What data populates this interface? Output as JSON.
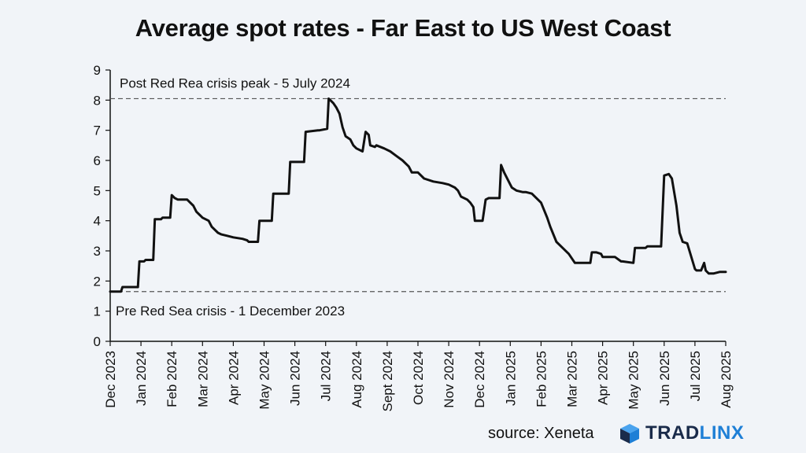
{
  "title": "Average spot rates - Far East to US West Coast",
  "source": "source: Xeneta",
  "brand": {
    "part1": "TRAD",
    "part2": "LINX",
    "icon": "cube-logo-icon"
  },
  "colors": {
    "background": "#f1f4f8",
    "line": "#111111",
    "reference": "#555555",
    "brand_dark": "#1a2b4a",
    "brand_blue": "#1e7fd6"
  },
  "chart_data": {
    "type": "line",
    "title": "Average spot rates - Far East to US West Coast",
    "xlabel": "",
    "ylabel": "",
    "ylim": [
      0,
      9
    ],
    "yticks": [
      0,
      1,
      2,
      3,
      4,
      5,
      6,
      7,
      8,
      9
    ],
    "xticks": [
      "Dec 2023",
      "Jan 2024",
      "Feb 2024",
      "Mar 2024",
      "Apr 2024",
      "May 2024",
      "Jun 2024",
      "Jul 2024",
      "Aug 2024",
      "Sept 2024",
      "Oct 2024",
      "Nov 2024",
      "Dec 2024",
      "Jan 2025",
      "Feb 2025",
      "Mar 2025",
      "Apr 2025",
      "May 2025",
      "Jun 2025",
      "Jul 2025",
      "Aug 2025"
    ],
    "grid": false,
    "reference_lines": [
      {
        "y": 8.05,
        "label": "Post Red Rea crisis peak - 5 July 2024"
      },
      {
        "y": 1.65,
        "label": "Pre Red Sea crisis - 1 December 2023"
      }
    ],
    "series": [
      {
        "x": [
          0,
          0.35,
          0.4,
          0.9,
          0.95,
          1.1,
          1.15,
          1.4,
          1.45,
          1.65,
          1.7,
          1.95,
          2.0,
          2.1,
          2.2,
          2.5,
          2.6,
          2.7,
          2.8,
          2.9,
          3.0,
          3.2,
          3.3,
          3.5,
          3.6,
          3.8,
          4.0,
          4.3,
          4.45,
          4.5,
          4.8,
          4.85,
          5.25,
          5.3,
          5.8,
          5.85,
          6.3,
          6.35,
          6.75,
          6.8,
          7.05,
          7.1,
          7.15,
          7.25,
          7.35,
          7.45,
          7.55,
          7.65,
          7.8,
          7.9,
          8.0,
          8.2,
          8.3,
          8.4,
          8.45,
          8.6,
          8.65,
          8.9,
          9.1,
          9.3,
          9.5,
          9.7,
          9.8,
          10.0,
          10.2,
          10.5,
          10.8,
          11.0,
          11.2,
          11.3,
          11.4,
          11.6,
          11.7,
          11.8,
          11.85,
          12.1,
          12.2,
          12.3,
          12.65,
          12.7,
          12.8,
          13.0,
          13.05,
          13.2,
          13.4,
          13.5,
          13.7,
          14.0,
          14.2,
          14.3,
          14.5,
          14.7,
          14.9,
          15.1,
          15.3,
          15.6,
          15.65,
          15.8,
          15.95,
          16.0,
          16.2,
          16.4,
          16.6,
          16.65,
          17.0,
          17.05,
          17.4,
          17.45,
          17.9,
          18.0,
          18.15,
          18.25,
          18.4,
          18.5,
          18.6,
          18.75,
          19.0,
          19.05,
          19.2,
          19.3,
          19.35,
          19.45,
          19.6,
          19.8,
          19.95,
          20.0
        ],
        "y": [
          1.65,
          1.65,
          1.8,
          1.8,
          2.65,
          2.65,
          2.7,
          2.7,
          4.05,
          4.05,
          4.1,
          4.1,
          4.85,
          4.75,
          4.7,
          4.7,
          4.6,
          4.5,
          4.3,
          4.2,
          4.1,
          4.0,
          3.8,
          3.6,
          3.55,
          3.5,
          3.45,
          3.4,
          3.35,
          3.3,
          3.3,
          4.0,
          4.0,
          4.9,
          4.9,
          5.95,
          5.95,
          6.95,
          7.0,
          7.0,
          7.05,
          8.05,
          8.0,
          7.9,
          7.75,
          7.55,
          7.1,
          6.8,
          6.7,
          6.5,
          6.4,
          6.3,
          6.95,
          6.85,
          6.5,
          6.45,
          6.5,
          6.4,
          6.3,
          6.15,
          6.0,
          5.8,
          5.6,
          5.6,
          5.4,
          5.3,
          5.25,
          5.2,
          5.1,
          5.0,
          4.8,
          4.7,
          4.6,
          4.45,
          4.0,
          4.0,
          4.7,
          4.75,
          4.75,
          5.85,
          5.6,
          5.2,
          5.1,
          5.0,
          4.95,
          4.95,
          4.9,
          4.6,
          4.1,
          3.8,
          3.3,
          3.1,
          2.9,
          2.6,
          2.6,
          2.6,
          2.95,
          2.95,
          2.9,
          2.8,
          2.8,
          2.8,
          2.65,
          2.65,
          2.6,
          3.1,
          3.1,
          3.15,
          3.15,
          5.5,
          5.55,
          5.4,
          4.5,
          3.6,
          3.3,
          3.25,
          2.4,
          2.35,
          2.35,
          2.6,
          2.35,
          2.25,
          2.25,
          2.3,
          2.3,
          2.3
        ]
      }
    ]
  }
}
